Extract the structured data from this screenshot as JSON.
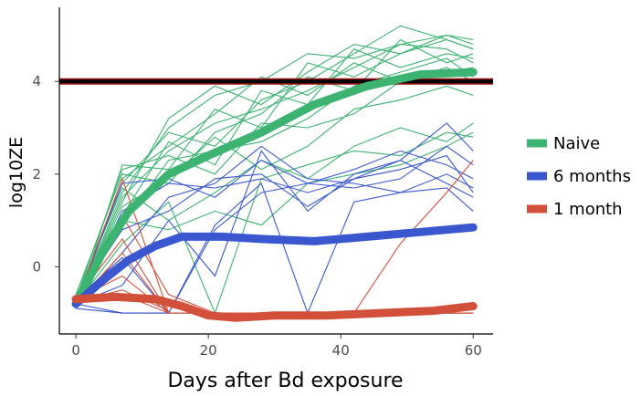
{
  "chart_data": {
    "type": "line",
    "xlabel": "Days after Bd exposure",
    "ylabel": "log10ZE",
    "xlim": [
      -2.5,
      63
    ],
    "ylim": [
      -1.45,
      5.6
    ],
    "xticks": [
      0,
      20,
      40,
      60
    ],
    "yticks": [
      0,
      2,
      4
    ],
    "grid": false,
    "legend_position": "right",
    "colors": {
      "naive": "#3cb371",
      "six_months": "#3a57d0",
      "one_month": "#d2503a",
      "threshold": "#000000",
      "threshold_glow": "#a01010"
    },
    "reference_line": {
      "y": 4.0
    },
    "series": [
      {
        "name": "Naive",
        "color": "#3cb371",
        "mean": {
          "x": [
            0,
            4,
            8,
            14,
            20,
            28,
            36,
            44,
            52,
            60
          ],
          "y": [
            -0.8,
            0.3,
            1.2,
            2.0,
            2.4,
            2.9,
            3.5,
            3.9,
            4.15,
            4.2
          ]
        },
        "individuals": [
          {
            "x": [
              0,
              7,
              14,
              21,
              28,
              35,
              42,
              49,
              56,
              60
            ],
            "y": [
              -0.8,
              1.5,
              2.5,
              3.1,
              3.4,
              3.8,
              4.3,
              4.8,
              5.0,
              4.9
            ]
          },
          {
            "x": [
              0,
              7,
              14,
              21,
              28,
              35,
              42,
              49,
              56,
              60
            ],
            "y": [
              -0.7,
              1.8,
              2.9,
              2.6,
              3.6,
              4.0,
              4.6,
              5.2,
              4.9,
              4.7
            ]
          },
          {
            "x": [
              0,
              7,
              14,
              21,
              28,
              35,
              42,
              49,
              56,
              60
            ],
            "y": [
              -0.9,
              2.2,
              2.1,
              3.4,
              3.0,
              4.4,
              4.1,
              4.6,
              5.0,
              4.8
            ]
          },
          {
            "x": [
              0,
              7,
              14,
              21,
              28,
              35,
              42,
              49,
              56,
              60
            ],
            "y": [
              -0.8,
              1.1,
              2.7,
              2.2,
              3.8,
              3.5,
              4.7,
              4.3,
              4.6,
              4.5
            ]
          },
          {
            "x": [
              0,
              7,
              14,
              21,
              28,
              35,
              42,
              49,
              56,
              60
            ],
            "y": [
              -0.6,
              2.0,
              1.8,
              2.9,
              3.3,
              4.1,
              3.8,
              4.9,
              4.4,
              4.6
            ]
          },
          {
            "x": [
              0,
              7,
              14,
              21,
              28,
              35,
              42,
              49,
              56,
              60
            ],
            "y": [
              -0.8,
              1.6,
              3.0,
              3.7,
              4.0,
              4.6,
              4.5,
              4.8,
              4.7,
              4.4
            ]
          },
          {
            "x": [
              0,
              7,
              14,
              21,
              28,
              35,
              42,
              49,
              56,
              60
            ],
            "y": [
              -0.7,
              0.9,
              2.3,
              2.5,
              2.7,
              3.2,
              3.9,
              4.2,
              4.5,
              4.1
            ]
          },
          {
            "x": [
              0,
              7,
              14,
              21,
              28,
              35,
              42,
              49,
              56,
              60
            ],
            "y": [
              -0.9,
              1.9,
              2.6,
              3.3,
              4.1,
              3.7,
              4.4,
              4.0,
              4.3,
              4.0
            ]
          },
          {
            "x": [
              0,
              7,
              14,
              21,
              28,
              35,
              42,
              49,
              56,
              60
            ],
            "y": [
              -0.8,
              1.3,
              1.9,
              2.8,
              2.1,
              2.6,
              3.4,
              3.6,
              3.9,
              3.7
            ]
          },
          {
            "x": [
              0,
              7,
              14,
              21,
              28,
              35,
              42,
              49,
              56,
              60
            ],
            "y": [
              -0.7,
              1.7,
              1.0,
              1.6,
              2.3,
              1.9,
              2.6,
              3.0,
              2.7,
              3.1
            ]
          },
          {
            "x": [
              0,
              7,
              14,
              21,
              28,
              35,
              42,
              49,
              56,
              60
            ],
            "y": [
              -0.8,
              0.5,
              1.4,
              -1.0,
              1.9,
              2.2,
              2.5,
              2.4,
              2.9,
              2.8
            ]
          },
          {
            "x": [
              0,
              7,
              14,
              21,
              28,
              35,
              42,
              49,
              56,
              60
            ],
            "y": [
              -0.9,
              1.0,
              0.8,
              1.2,
              0.9,
              1.8,
              2.0,
              2.2,
              2.6,
              2.9
            ]
          },
          {
            "x": [
              0,
              7,
              14,
              21,
              28,
              35,
              42,
              49,
              56,
              60
            ],
            "y": [
              -0.7,
              2.1,
              2.4,
              2.0,
              3.1,
              3.0,
              3.3,
              4.0,
              4.2,
              4.3
            ]
          },
          {
            "x": [
              0,
              7,
              14,
              21,
              28,
              35,
              42,
              49,
              56,
              60
            ],
            "y": [
              -0.8,
              1.4,
              3.2,
              3.9,
              3.5,
              4.2,
              4.8,
              4.6,
              4.9,
              4.7
            ]
          }
        ]
      },
      {
        "name": "6 months",
        "color": "#3a57d0",
        "mean": {
          "x": [
            0,
            4,
            8,
            12,
            16,
            22,
            28,
            36,
            44,
            52,
            60
          ],
          "y": [
            -0.8,
            -0.3,
            0.15,
            0.45,
            0.65,
            0.65,
            0.6,
            0.55,
            0.65,
            0.75,
            0.85
          ]
        },
        "individuals": [
          {
            "x": [
              0,
              7,
              14,
              21,
              28,
              35,
              42,
              49,
              56,
              60
            ],
            "y": [
              -0.8,
              1.8,
              1.9,
              1.5,
              2.3,
              1.8,
              2.1,
              2.5,
              2.2,
              1.9
            ]
          },
          {
            "x": [
              0,
              7,
              14,
              21,
              28,
              35,
              42,
              49,
              56,
              60
            ],
            "y": [
              -0.9,
              1.2,
              1.8,
              1.7,
              1.9,
              1.6,
              1.9,
              2.3,
              1.8,
              1.5
            ]
          },
          {
            "x": [
              0,
              7,
              14,
              21,
              28,
              35,
              42,
              49,
              56,
              60
            ],
            "y": [
              -0.7,
              0.2,
              -1.0,
              0.8,
              1.6,
              1.8,
              1.7,
              1.9,
              2.6,
              2.2
            ]
          },
          {
            "x": [
              0,
              7,
              14,
              21,
              28,
              35,
              42,
              49,
              56,
              60
            ],
            "y": [
              -0.8,
              -0.4,
              1.0,
              -0.2,
              2.5,
              1.2,
              2.0,
              2.3,
              3.1,
              2.5
            ]
          },
          {
            "x": [
              0,
              7,
              14,
              21,
              28,
              35,
              42,
              49,
              56,
              60
            ],
            "y": [
              -0.9,
              -1.0,
              -1.0,
              0.9,
              1.8,
              -1.0,
              1.4,
              1.6,
              1.7,
              1.2
            ]
          },
          {
            "x": [
              0,
              7,
              14,
              21,
              28,
              35,
              42,
              49,
              56,
              60
            ],
            "y": [
              -0.8,
              0.3,
              1.5,
              1.8,
              2.6,
              1.9,
              1.8,
              1.6,
              2.0,
              1.7
            ]
          },
          {
            "x": [
              0,
              7,
              14,
              21,
              28,
              35,
              42,
              49,
              56,
              60
            ],
            "y": [
              -0.8,
              -1.0,
              -1.0,
              -1.0,
              -1.0,
              -1.0,
              -1.0,
              -1.0,
              -1.0,
              -1.0
            ]
          },
          {
            "x": [
              0,
              7,
              14,
              21,
              28,
              35,
              42,
              49,
              56,
              60
            ],
            "y": [
              -0.7,
              0.8,
              1.2,
              1.9,
              2.0,
              1.3,
              1.9,
              2.1,
              2.4,
              1.6
            ]
          }
        ]
      },
      {
        "name": "1 month",
        "color": "#d2503a",
        "mean": {
          "x": [
            0,
            6,
            12,
            16,
            20,
            24,
            30,
            38,
            46,
            54,
            60
          ],
          "y": [
            -0.7,
            -0.65,
            -0.7,
            -0.85,
            -1.05,
            -1.1,
            -1.05,
            -1.05,
            -1.0,
            -0.95,
            -0.85
          ]
        },
        "individuals": [
          {
            "x": [
              0,
              7,
              14,
              21,
              28,
              35,
              42,
              49,
              56,
              60
            ],
            "y": [
              -0.8,
              1.9,
              -1.0,
              -1.0,
              -1.0,
              -1.0,
              -1.0,
              -1.0,
              -1.0,
              -1.0
            ]
          },
          {
            "x": [
              0,
              7,
              14,
              21,
              28,
              35,
              42,
              49,
              56,
              60
            ],
            "y": [
              -0.7,
              0.6,
              -1.0,
              -1.0,
              -1.0,
              -1.0,
              -1.0,
              -1.0,
              -1.0,
              -1.0
            ]
          },
          {
            "x": [
              0,
              7,
              14,
              21,
              28,
              35,
              42,
              49,
              56,
              60
            ],
            "y": [
              -0.8,
              1.1,
              -0.6,
              -1.0,
              -1.0,
              -1.0,
              -1.0,
              -1.0,
              -1.0,
              -1.0
            ]
          },
          {
            "x": [
              0,
              7,
              14
            ],
            "y": [
              -0.7,
              -0.2,
              -1.0
            ]
          },
          {
            "x": [
              0,
              7,
              14
            ],
            "y": [
              -0.8,
              0.3,
              -1.0
            ]
          },
          {
            "x": [
              0,
              7,
              14
            ],
            "y": [
              -0.75,
              -0.5,
              -0.95
            ]
          },
          {
            "x": [
              0,
              7,
              14,
              21,
              28,
              35,
              42,
              49,
              56,
              60
            ],
            "y": [
              -0.8,
              -0.6,
              -1.0,
              -1.0,
              -1.0,
              -1.0,
              -1.0,
              -1.0,
              -1.0,
              -1.0
            ]
          },
          {
            "x": [
              35,
              42,
              49,
              56,
              60
            ],
            "y": [
              -1.0,
              -1.0,
              0.5,
              1.6,
              2.3
            ]
          }
        ]
      }
    ]
  }
}
